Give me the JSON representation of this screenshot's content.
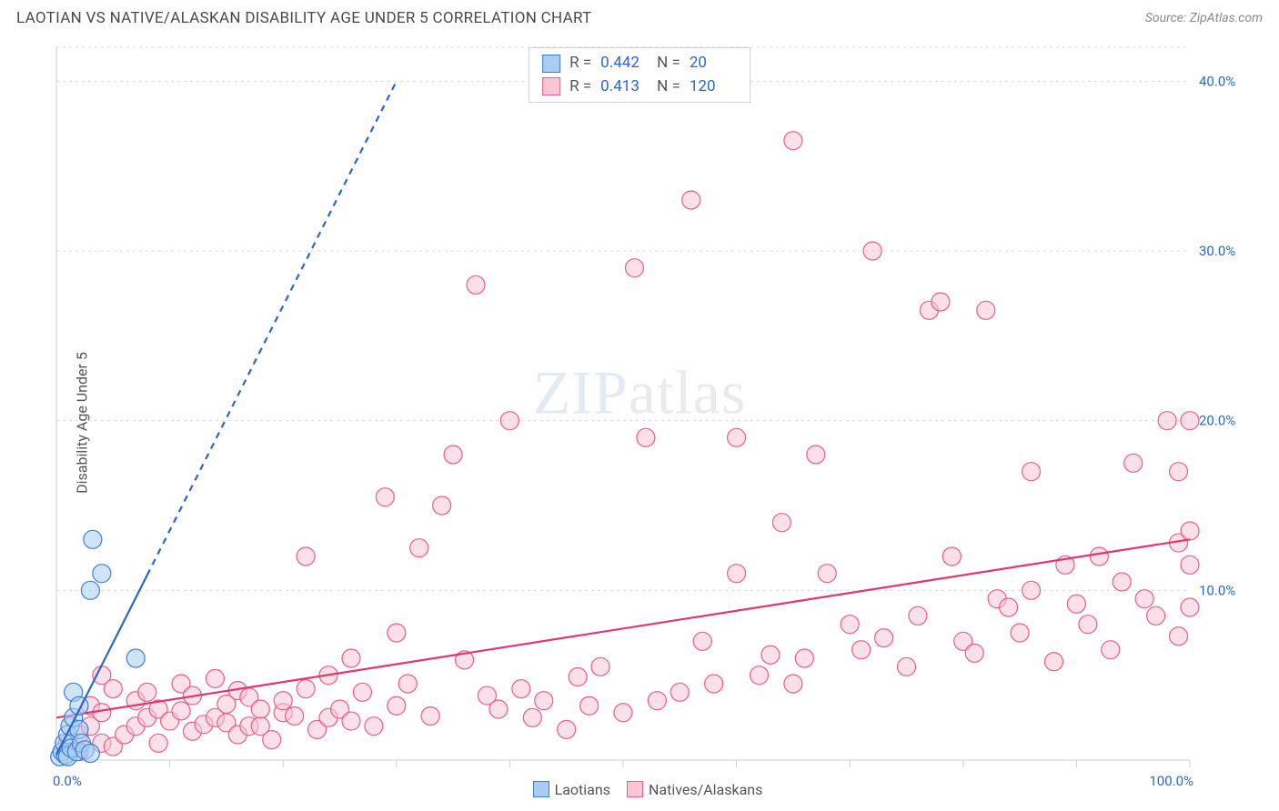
{
  "header": {
    "title": "LAOTIAN VS NATIVE/ALASKAN DISABILITY AGE UNDER 5 CORRELATION CHART",
    "source_prefix": "Source: ",
    "source_name": "ZipAtlas.com"
  },
  "watermark": {
    "part1": "ZIP",
    "part2": "atlas"
  },
  "chart": {
    "type": "scatter",
    "xlim": [
      0,
      100
    ],
    "ylim": [
      0,
      42
    ],
    "x_ticks": [
      0,
      10,
      20,
      30,
      40,
      50,
      60,
      70,
      80,
      90,
      100
    ],
    "x_tick_labels_shown": {
      "0": "0.0%",
      "100": "100.0%"
    },
    "y_gridlines": [
      10,
      20,
      30,
      40
    ],
    "y_tick_labels": {
      "10": "10.0%",
      "20": "20.0%",
      "30": "30.0%",
      "40": "40.0%"
    },
    "background_color": "#ffffff",
    "grid_color": "#d8d8d8",
    "axis_color": "#cfcfcf",
    "ylabel": "Disability Age Under 5",
    "marker_radius": 10,
    "marker_stroke_width": 1.2,
    "series": [
      {
        "name": "Natives/Alaskans",
        "fill": "#f9c6d3",
        "stroke": "#e85d8a",
        "fill_opacity": 0.55,
        "regression": {
          "x1": 0,
          "y1": 2.5,
          "x2": 100,
          "y2": 13.0,
          "color": "#e63371",
          "width": 2.2,
          "dash_from_x": null
        },
        "points": [
          [
            1,
            1
          ],
          [
            2,
            0.5
          ],
          [
            2,
            1.5
          ],
          [
            3,
            2
          ],
          [
            3,
            3.2
          ],
          [
            4,
            1
          ],
          [
            4,
            2.8
          ],
          [
            4,
            5
          ],
          [
            5,
            0.8
          ],
          [
            5,
            4.2
          ],
          [
            6,
            1.5
          ],
          [
            7,
            2
          ],
          [
            7,
            3.5
          ],
          [
            8,
            2.5
          ],
          [
            8,
            4
          ],
          [
            9,
            1
          ],
          [
            9,
            3
          ],
          [
            10,
            2.3
          ],
          [
            11,
            2.9
          ],
          [
            11,
            4.5
          ],
          [
            12,
            1.7
          ],
          [
            12,
            3.8
          ],
          [
            13,
            2.1
          ],
          [
            14,
            2.5
          ],
          [
            14,
            4.8
          ],
          [
            15,
            2.2
          ],
          [
            15,
            3.3
          ],
          [
            16,
            1.5
          ],
          [
            16,
            4.1
          ],
          [
            17,
            2
          ],
          [
            17,
            3.7
          ],
          [
            18,
            2
          ],
          [
            18,
            3
          ],
          [
            19,
            1.2
          ],
          [
            20,
            2.8
          ],
          [
            20,
            3.5
          ],
          [
            21,
            2.6
          ],
          [
            22,
            4.2
          ],
          [
            22,
            12
          ],
          [
            23,
            1.8
          ],
          [
            24,
            2.5
          ],
          [
            24,
            5
          ],
          [
            25,
            3
          ],
          [
            26,
            2.3
          ],
          [
            26,
            6
          ],
          [
            27,
            4
          ],
          [
            28,
            2
          ],
          [
            29,
            15.5
          ],
          [
            30,
            3.2
          ],
          [
            30,
            7.5
          ],
          [
            31,
            4.5
          ],
          [
            32,
            12.5
          ],
          [
            33,
            2.6
          ],
          [
            34,
            15
          ],
          [
            35,
            18
          ],
          [
            36,
            5.9
          ],
          [
            37,
            28
          ],
          [
            38,
            3.8
          ],
          [
            39,
            3
          ],
          [
            40,
            20
          ],
          [
            41,
            4.2
          ],
          [
            42,
            2.5
          ],
          [
            43,
            3.5
          ],
          [
            45,
            1.8
          ],
          [
            46,
            4.9
          ],
          [
            47,
            3.2
          ],
          [
            48,
            5.5
          ],
          [
            50,
            2.8
          ],
          [
            51,
            29
          ],
          [
            52,
            19
          ],
          [
            53,
            3.5
          ],
          [
            55,
            4
          ],
          [
            56,
            33
          ],
          [
            57,
            7
          ],
          [
            58,
            4.5
          ],
          [
            60,
            11
          ],
          [
            60,
            19
          ],
          [
            62,
            5
          ],
          [
            63,
            6.2
          ],
          [
            64,
            14
          ],
          [
            65,
            4.5
          ],
          [
            65,
            36.5
          ],
          [
            66,
            6
          ],
          [
            67,
            18
          ],
          [
            68,
            11
          ],
          [
            70,
            8
          ],
          [
            71,
            6.5
          ],
          [
            72,
            30
          ],
          [
            73,
            7.2
          ],
          [
            75,
            5.5
          ],
          [
            76,
            8.5
          ],
          [
            77,
            26.5
          ],
          [
            78,
            27
          ],
          [
            79,
            12
          ],
          [
            80,
            7
          ],
          [
            81,
            6.3
          ],
          [
            82,
            26.5
          ],
          [
            83,
            9.5
          ],
          [
            84,
            9
          ],
          [
            85,
            7.5
          ],
          [
            86,
            10
          ],
          [
            86,
            17
          ],
          [
            88,
            5.8
          ],
          [
            89,
            11.5
          ],
          [
            90,
            9.2
          ],
          [
            91,
            8
          ],
          [
            92,
            12
          ],
          [
            93,
            6.5
          ],
          [
            94,
            10.5
          ],
          [
            95,
            17.5
          ],
          [
            96,
            9.5
          ],
          [
            97,
            8.5
          ],
          [
            98,
            20
          ],
          [
            99,
            7.3
          ],
          [
            99,
            12.8
          ],
          [
            99,
            17
          ],
          [
            100,
            9
          ],
          [
            100,
            11.5
          ],
          [
            100,
            13.5
          ],
          [
            100,
            20
          ]
        ]
      },
      {
        "name": "Laotians",
        "fill": "#a9cdf2",
        "stroke": "#3b7dd8",
        "fill_opacity": 0.55,
        "regression": {
          "x1": 0,
          "y1": 0.3,
          "x2": 30,
          "y2": 40,
          "color": "#2968c8",
          "width": 2.2,
          "dash_from_x": 8
        },
        "points": [
          [
            0.3,
            0.2
          ],
          [
            0.5,
            0.5
          ],
          [
            0.7,
            1
          ],
          [
            0.8,
            0.3
          ],
          [
            1,
            1.5
          ],
          [
            1,
            0.2
          ],
          [
            1.2,
            2
          ],
          [
            1.3,
            0.7
          ],
          [
            1.5,
            2.5
          ],
          [
            1.5,
            4
          ],
          [
            1.8,
            0.5
          ],
          [
            2,
            1.8
          ],
          [
            2,
            3.2
          ],
          [
            2.2,
            1
          ],
          [
            2.5,
            0.6
          ],
          [
            3,
            0.4
          ],
          [
            3,
            10
          ],
          [
            3.2,
            13
          ],
          [
            4,
            11
          ],
          [
            7,
            6
          ]
        ]
      }
    ],
    "legend_stats": [
      {
        "swatch_fill": "#a9cdf2",
        "swatch_stroke": "#3b7dd8",
        "r_label": "R =",
        "r": "0.442",
        "n_label": "N =",
        "n": "20"
      },
      {
        "swatch_fill": "#f9c6d3",
        "swatch_stroke": "#e85d8a",
        "r_label": "R =",
        "r": "0.413",
        "n_label": "N =",
        "n": "120"
      }
    ],
    "bottom_legend": [
      {
        "swatch_fill": "#a9cdf2",
        "swatch_stroke": "#3b7dd8",
        "label": "Laotians"
      },
      {
        "swatch_fill": "#f9c6d3",
        "swatch_stroke": "#e85d8a",
        "label": "Natives/Alaskans"
      }
    ]
  }
}
